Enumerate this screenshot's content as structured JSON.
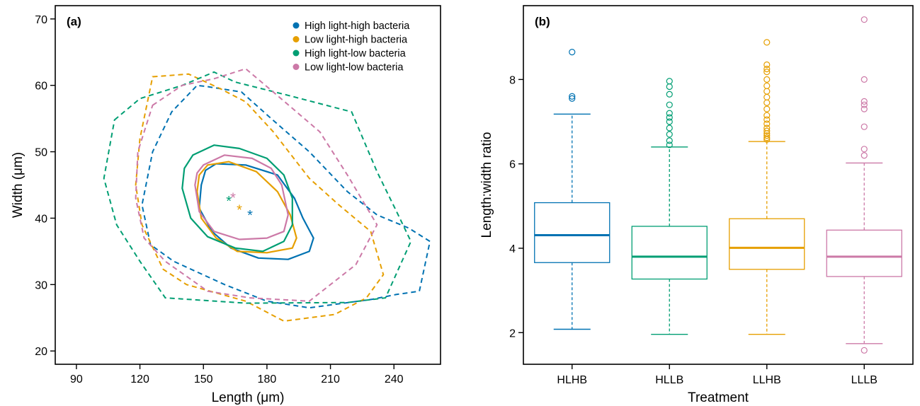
{
  "chart_data": [
    {
      "panel_label": "(a)",
      "type": "line",
      "xlabel": "Length (μm)",
      "ylabel": "Width (μm)",
      "xlim": [
        80,
        262
      ],
      "ylim": [
        18,
        72
      ],
      "x_ticks": [
        90,
        120,
        150,
        180,
        210,
        240
      ],
      "y_ticks": [
        20,
        30,
        40,
        50,
        60,
        70
      ],
      "grid": false,
      "legend_position": "top-right",
      "series": [
        {
          "name": "High light-high bacteria",
          "color": "#0072B2",
          "centroid": [
            172,
            40.6
          ],
          "inner_contour": [
            [
              156,
              48.2
            ],
            [
              170,
              48
            ],
            [
              185,
              46.5
            ],
            [
              193,
              43
            ],
            [
              197,
              40
            ],
            [
              202,
              37
            ],
            [
              200,
              35
            ],
            [
              190,
              33.8
            ],
            [
              176,
              34
            ],
            [
              163,
              35.5
            ],
            [
              154,
              38
            ],
            [
              148,
              41.5
            ],
            [
              149,
              45
            ],
            [
              151,
              47.2
            ]
          ],
          "outer_contour": [
            [
              152,
              59.8
            ],
            [
              168,
              59
            ],
            [
              182,
              55
            ],
            [
              200,
              50
            ],
            [
              218,
              44
            ],
            [
              232,
              40.5
            ],
            [
              247,
              38.5
            ],
            [
              257,
              36.5
            ],
            [
              252,
              29
            ],
            [
              241,
              28.5
            ],
            [
              230,
              27.8
            ],
            [
              200,
              26.5
            ],
            [
              180,
              27.5
            ],
            [
              160,
              30
            ],
            [
              136,
              33.5
            ],
            [
              125,
              36
            ],
            [
              121,
              42
            ],
            [
              126,
              50
            ],
            [
              135,
              56
            ],
            [
              147,
              60
            ]
          ]
        },
        {
          "name": "Low light-high bacteria",
          "color": "#E69F00",
          "centroid": [
            167,
            41.4
          ],
          "inner_contour": [
            [
              152,
              48
            ],
            [
              162,
              48.5
            ],
            [
              175,
              47
            ],
            [
              185,
              44
            ],
            [
              191,
              40.5
            ],
            [
              194,
              37
            ],
            [
              192,
              35.5
            ],
            [
              180,
              34.8
            ],
            [
              166,
              35
            ],
            [
              156,
              37
            ],
            [
              149,
              40
            ],
            [
              147,
              44
            ],
            [
              148,
              46.5
            ]
          ],
          "outer_contour": [
            [
              126,
              61.3
            ],
            [
              143,
              61.7
            ],
            [
              158,
              59.5
            ],
            [
              170,
              57.5
            ],
            [
              183,
              53
            ],
            [
              200,
              46
            ],
            [
              214,
              42
            ],
            [
              229,
              38
            ],
            [
              235,
              31.5
            ],
            [
              227,
              28
            ],
            [
              212,
              25.5
            ],
            [
              188,
              24.5
            ],
            [
              170,
              27.5
            ],
            [
              142,
              30
            ],
            [
              131,
              32.3
            ],
            [
              121,
              39
            ],
            [
              118,
              45
            ],
            [
              120,
              52
            ]
          ]
        },
        {
          "name": "High light-low bacteria",
          "color": "#009E73",
          "centroid": [
            162,
            42.7
          ],
          "inner_contour": [
            [
              145,
              49.5
            ],
            [
              155,
              51
            ],
            [
              167,
              50.5
            ],
            [
              180,
              49
            ],
            [
              188,
              46.5
            ],
            [
              192,
              43
            ],
            [
              192,
              39
            ],
            [
              188,
              36.5
            ],
            [
              178,
              35
            ],
            [
              165,
              35.5
            ],
            [
              152,
              37.2
            ],
            [
              144,
              40
            ],
            [
              140,
              44.5
            ],
            [
              141,
              47.5
            ]
          ],
          "outer_contour": [
            [
              108,
              54.8
            ],
            [
              120,
              58
            ],
            [
              140,
              60
            ],
            [
              155,
              62
            ],
            [
              165,
              60.5
            ],
            [
              190,
              58.5
            ],
            [
              220,
              56
            ],
            [
              232,
              47
            ],
            [
              242,
              40.5
            ],
            [
              248,
              36.5
            ],
            [
              236,
              28
            ],
            [
              218,
              27.3
            ],
            [
              170,
              27.2
            ],
            [
              132,
              28
            ],
            [
              120,
              33.5
            ],
            [
              109,
              39
            ],
            [
              103,
              46
            ]
          ]
        },
        {
          "name": "Low light-low bacteria",
          "color": "#CC79A7",
          "centroid": [
            164,
            43.2
          ],
          "inner_contour": [
            [
              150,
              48
            ],
            [
              160,
              49.5
            ],
            [
              173,
              49
            ],
            [
              182,
              47.5
            ],
            [
              187,
              45
            ],
            [
              190,
              40.5
            ],
            [
              188,
              38
            ],
            [
              180,
              37
            ],
            [
              167,
              36.8
            ],
            [
              155,
              38
            ],
            [
              148,
              41
            ],
            [
              146,
              45
            ],
            [
              147,
              46.8
            ]
          ],
          "outer_contour": [
            [
              126,
              57
            ],
            [
              140,
              60
            ],
            [
              155,
              61
            ],
            [
              170,
              62.5
            ],
            [
              183,
              59
            ],
            [
              205,
              53
            ],
            [
              218,
              46.5
            ],
            [
              232,
              39
            ],
            [
              222,
              33
            ],
            [
              200,
              27.5
            ],
            [
              172,
              28
            ],
            [
              152,
              29
            ],
            [
              132,
              33.5
            ],
            [
              122,
              37
            ],
            [
              118,
              43
            ],
            [
              119,
              50
            ]
          ]
        }
      ]
    },
    {
      "panel_label": "(b)",
      "type": "box",
      "xlabel": "Treatment",
      "ylabel": "Length:width ratio",
      "ylim": [
        1.25,
        9.75
      ],
      "y_ticks": [
        2,
        4,
        6,
        8
      ],
      "grid": false,
      "categories": [
        "HLHB",
        "HLLB",
        "LLHB",
        "LLLB"
      ],
      "colors": [
        "#0072B2",
        "#009E73",
        "#E69F00",
        "#CC79A7"
      ],
      "boxes": [
        {
          "whisker_low": 2.08,
          "q1": 3.66,
          "median": 4.31,
          "q3": 5.08,
          "whisker_high": 7.18,
          "outliers": [
            7.55,
            7.6,
            8.65
          ]
        },
        {
          "whisker_low": 1.96,
          "q1": 3.27,
          "median": 3.8,
          "q3": 4.52,
          "whisker_high": 6.4,
          "outliers": [
            6.45,
            6.55,
            6.7,
            6.85,
            7.0,
            7.1,
            7.2,
            7.4,
            7.65,
            7.83,
            7.96
          ]
        },
        {
          "whisker_low": 1.96,
          "q1": 3.5,
          "median": 4.01,
          "q3": 4.7,
          "whisker_high": 6.53,
          "outliers": [
            6.58,
            6.62,
            6.67,
            6.72,
            6.78,
            6.85,
            6.95,
            7.05,
            7.15,
            7.3,
            7.45,
            7.58,
            7.72,
            7.85,
            8.0,
            8.18,
            8.25,
            8.35,
            8.88
          ]
        },
        {
          "whisker_low": 1.74,
          "q1": 3.33,
          "median": 3.8,
          "q3": 4.43,
          "whisker_high": 6.02,
          "outliers": [
            1.58,
            6.2,
            6.35,
            6.88,
            7.3,
            7.4,
            7.48,
            8.0,
            9.42
          ]
        }
      ]
    }
  ]
}
